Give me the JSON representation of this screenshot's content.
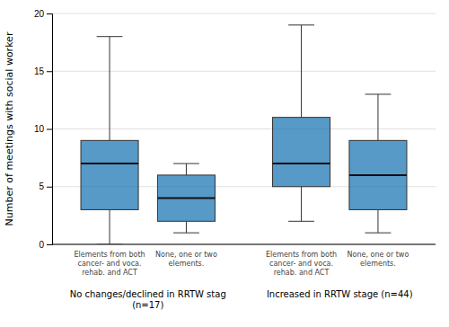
{
  "chart_data": {
    "type": "box",
    "ylabel": "Number of meetings with social worker",
    "ylim": [
      0,
      20
    ],
    "yticks": [
      0,
      5,
      10,
      15,
      20
    ],
    "grid": true,
    "groups": [
      {
        "label": "No changes/declined in RRTW stag (n=17)",
        "categories": [
          "Elements from both cancer- and voca. rehab. and ACT",
          "None, one or two elements."
        ],
        "boxes": [
          {
            "whisker_low": 0,
            "q1": 3,
            "median": 7,
            "q3": 9,
            "whisker_high": 18
          },
          {
            "whisker_low": 1,
            "q1": 2,
            "median": 4,
            "q3": 6,
            "whisker_high": 7
          }
        ]
      },
      {
        "label": "Increased in RRTW stage (n=44)",
        "categories": [
          "Elements from both cancer- and voca. rehab. and ACT",
          "None, one or two elements."
        ],
        "boxes": [
          {
            "whisker_low": 2,
            "q1": 5,
            "median": 7,
            "q3": 11,
            "whisker_high": 19
          },
          {
            "whisker_low": 1,
            "q1": 3,
            "median": 6,
            "q3": 9,
            "whisker_high": 13
          }
        ]
      }
    ]
  }
}
